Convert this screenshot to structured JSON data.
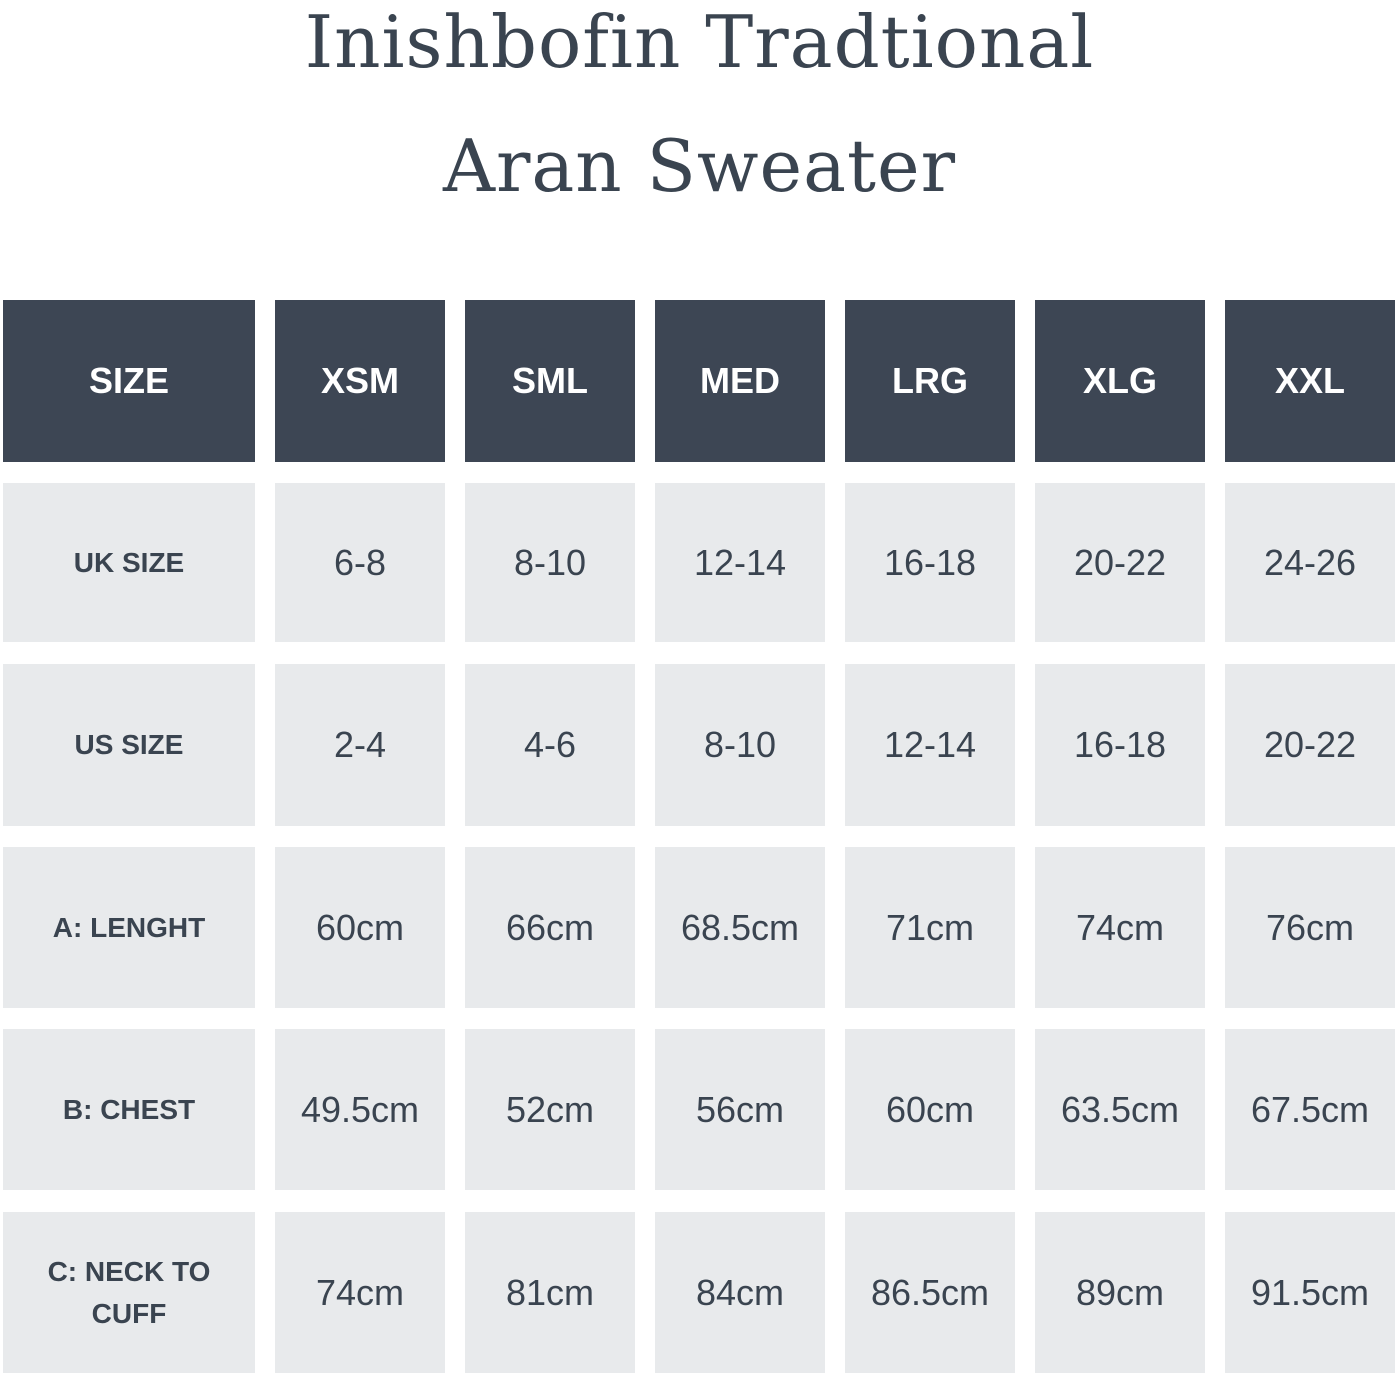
{
  "title": {
    "line1": "Inishbofin Tradtional",
    "line2": "Aran Sweater"
  },
  "table": {
    "header": [
      "SIZE",
      "XSM",
      "SML",
      "MED",
      "LRG",
      "XLG",
      "XXL"
    ],
    "rows": [
      {
        "label": "UK SIZE",
        "values": [
          "6-8",
          "8-10",
          "12-14",
          "16-18",
          "20-22",
          "24-26"
        ]
      },
      {
        "label": "US SIZE",
        "values": [
          "2-4",
          "4-6",
          "8-10",
          "12-14",
          "16-18",
          "20-22"
        ]
      },
      {
        "label": "A: LENGHT",
        "values": [
          "60cm",
          "66cm",
          "68.5cm",
          "71cm",
          "74cm",
          "76cm"
        ]
      },
      {
        "label": "B: CHEST",
        "values": [
          "49.5cm",
          "52cm",
          "56cm",
          "60cm",
          "63.5cm",
          "67.5cm"
        ]
      },
      {
        "label": "C: NECK TO CUFF",
        "values": [
          "74cm",
          "81cm",
          "84cm",
          "86.5cm",
          "89cm",
          "91.5cm"
        ]
      }
    ]
  },
  "colors": {
    "header_bg": "#3d4654",
    "cell_bg": "#e8eaec",
    "text": "#3a4450"
  }
}
